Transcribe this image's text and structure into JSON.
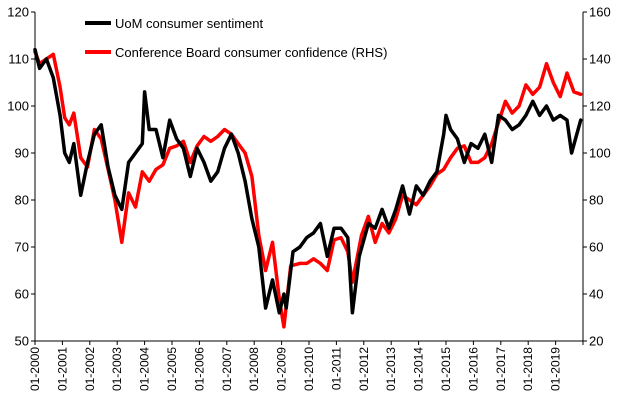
{
  "chart_data": {
    "type": "line",
    "title": "",
    "xlabel": "",
    "ylabel": "",
    "grid": false,
    "legend_position": "top-left",
    "x_tick_labels": [
      "01-2000",
      "01-2001",
      "01-2002",
      "01-2003",
      "01-2004",
      "01-2005",
      "01-2006",
      "01-2007",
      "01-2008",
      "01-2009",
      "01-2010",
      "01-2011",
      "01-2012",
      "01-2013",
      "01-2014",
      "01-2015",
      "01-2016",
      "01-2017",
      "01-2018",
      "01-2019"
    ],
    "left_axis": {
      "ylim": [
        50,
        120
      ],
      "ticks": [
        "50",
        "60",
        "70",
        "80",
        "90",
        "100",
        "110",
        "120"
      ]
    },
    "right_axis": {
      "ylim": [
        20,
        160
      ],
      "ticks": [
        "20",
        "40",
        "60",
        "80",
        "100",
        "120",
        "140",
        "160"
      ]
    },
    "series": [
      {
        "name": "UoM consumer sentiment",
        "axis": "left",
        "color": "#000000",
        "x": [
          "2000-01",
          "2000-03",
          "2000-06",
          "2000-09",
          "2000-12",
          "2001-02",
          "2001-04",
          "2001-06",
          "2001-09",
          "2001-12",
          "2002-03",
          "2002-06",
          "2002-09",
          "2002-12",
          "2003-03",
          "2003-06",
          "2003-09",
          "2003-12",
          "2004-01",
          "2004-03",
          "2004-06",
          "2004-09",
          "2004-12",
          "2005-03",
          "2005-06",
          "2005-09",
          "2005-12",
          "2006-03",
          "2006-06",
          "2006-09",
          "2006-12",
          "2007-03",
          "2007-06",
          "2007-09",
          "2007-12",
          "2008-03",
          "2008-06",
          "2008-09",
          "2008-12",
          "2009-02",
          "2009-03",
          "2009-06",
          "2009-09",
          "2009-12",
          "2010-03",
          "2010-06",
          "2010-09",
          "2010-12",
          "2011-03",
          "2011-06",
          "2011-08",
          "2011-11",
          "2012-03",
          "2012-06",
          "2012-09",
          "2012-12",
          "2013-03",
          "2013-06",
          "2013-09",
          "2013-12",
          "2014-03",
          "2014-06",
          "2014-09",
          "2014-12",
          "2015-01",
          "2015-03",
          "2015-06",
          "2015-09",
          "2015-12",
          "2016-03",
          "2016-06",
          "2016-09",
          "2016-12",
          "2017-03",
          "2017-06",
          "2017-09",
          "2017-12",
          "2018-03",
          "2018-06",
          "2018-09",
          "2018-12",
          "2019-03",
          "2019-06",
          "2019-08",
          "2019-12"
        ],
        "values": [
          112,
          108,
          110,
          106,
          98,
          90,
          88,
          92,
          81,
          88,
          94,
          96,
          87,
          81,
          78,
          88,
          90,
          92,
          103,
          95,
          95,
          89,
          97,
          93,
          91,
          85,
          91,
          88,
          84,
          86,
          91,
          94,
          90,
          84,
          76,
          70,
          57,
          63,
          56,
          60,
          57,
          69,
          70,
          72,
          73,
          75,
          68,
          74,
          74,
          72,
          56,
          68,
          75,
          74,
          78,
          74,
          78,
          83,
          77,
          83,
          81,
          84,
          86,
          94,
          98,
          95,
          93,
          88,
          92,
          91,
          94,
          88,
          98,
          97,
          95,
          96,
          98,
          101,
          98,
          100,
          97,
          98,
          97,
          90,
          97
        ]
      },
      {
        "name": "Conference Board consumer confidence (RHS)",
        "axis": "right",
        "color": "#ff0000",
        "x": [
          "2000-01",
          "2000-03",
          "2000-06",
          "2000-09",
          "2000-12",
          "2001-02",
          "2001-04",
          "2001-06",
          "2001-09",
          "2001-12",
          "2002-03",
          "2002-06",
          "2002-09",
          "2002-12",
          "2003-03",
          "2003-06",
          "2003-09",
          "2003-12",
          "2004-03",
          "2004-06",
          "2004-09",
          "2004-12",
          "2005-03",
          "2005-06",
          "2005-09",
          "2005-12",
          "2006-03",
          "2006-06",
          "2006-09",
          "2006-12",
          "2007-03",
          "2007-06",
          "2007-09",
          "2007-12",
          "2008-03",
          "2008-06",
          "2008-09",
          "2008-12",
          "2009-02",
          "2009-05",
          "2009-09",
          "2009-12",
          "2010-03",
          "2010-06",
          "2010-09",
          "2010-12",
          "2011-03",
          "2011-06",
          "2011-08",
          "2011-12",
          "2012-03",
          "2012-06",
          "2012-09",
          "2012-12",
          "2013-03",
          "2013-06",
          "2013-09",
          "2013-12",
          "2014-03",
          "2014-06",
          "2014-09",
          "2014-12",
          "2015-03",
          "2015-06",
          "2015-09",
          "2015-12",
          "2016-03",
          "2016-06",
          "2016-09",
          "2016-12",
          "2017-03",
          "2017-06",
          "2017-09",
          "2017-12",
          "2018-03",
          "2018-06",
          "2018-09",
          "2018-12",
          "2019-03",
          "2019-06",
          "2019-09",
          "2019-12"
        ],
        "values": [
          143,
          138,
          140,
          142,
          128,
          115,
          112,
          117,
          98,
          94,
          110,
          106,
          93,
          80,
          62,
          83,
          77,
          92,
          88,
          93,
          95,
          102,
          103,
          105,
          96,
          103,
          107,
          105,
          107,
          110,
          108,
          104,
          100,
          90,
          65,
          50,
          62,
          38,
          26,
          52,
          53,
          53,
          55,
          53,
          50,
          63,
          64,
          58,
          45,
          65,
          73,
          62,
          70,
          66,
          72,
          82,
          80,
          78,
          82,
          86,
          91,
          93,
          98,
          102,
          103,
          96,
          96,
          98,
          104,
          113,
          122,
          117,
          120,
          129,
          125,
          128,
          138,
          130,
          124,
          134,
          126,
          125
        ]
      }
    ]
  }
}
